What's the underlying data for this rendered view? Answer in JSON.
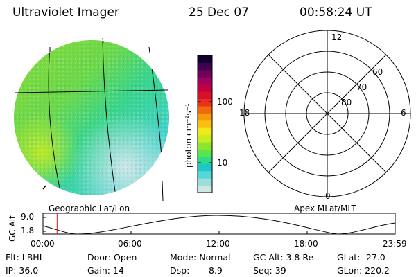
{
  "header": {
    "instrument": "Ultraviolet Imager",
    "date": "25 Dec 07",
    "time": "00:58:24 UT"
  },
  "left_panel": {
    "label": "Geographic Lat/Lon"
  },
  "right_panel": {
    "label": "Apex MLat/MLT",
    "mlt_labels": {
      "top": "12",
      "left": "18",
      "right": "6",
      "bottom": "0"
    },
    "lat_labels": [
      "60",
      "70",
      "80"
    ]
  },
  "colorbar": {
    "unit_label": "photon cm⁻²s⁻¹",
    "ticks": [
      "100",
      "10"
    ],
    "colors": [
      "#cfe6e6",
      "#9fdcdc",
      "#53d8d8",
      "#1fc8c8",
      "#2adc8c",
      "#5ae64a",
      "#8ce62e",
      "#c8ec1c",
      "#f0e818",
      "#f8c010",
      "#f89a0c",
      "#f06a0c",
      "#e8301a",
      "#d81030",
      "#c00040",
      "#a00060",
      "#70005a",
      "#400050",
      "#100030"
    ]
  },
  "altitude_plot": {
    "axis_label": "GC Alt",
    "y_ticks": [
      "9.0",
      "1.8"
    ],
    "x_ticks": [
      "00:00",
      "06:00",
      "12:00",
      "18:00",
      "23:59"
    ],
    "current_marker_fraction": 0.04
  },
  "info": {
    "flt": "Flt: LBHL",
    "door": "Door: Open",
    "mode": "Mode: Normal",
    "gc_alt": "GC Alt: 3.8 Re",
    "glat": "GLat: -27.0",
    "ip": "IP: 36.0",
    "gain": "Gain: 14",
    "dsp_label": "Dsp:",
    "dsp_value": "8.9",
    "seq": "Seq: 39",
    "glon": "GLon: 220.2"
  }
}
